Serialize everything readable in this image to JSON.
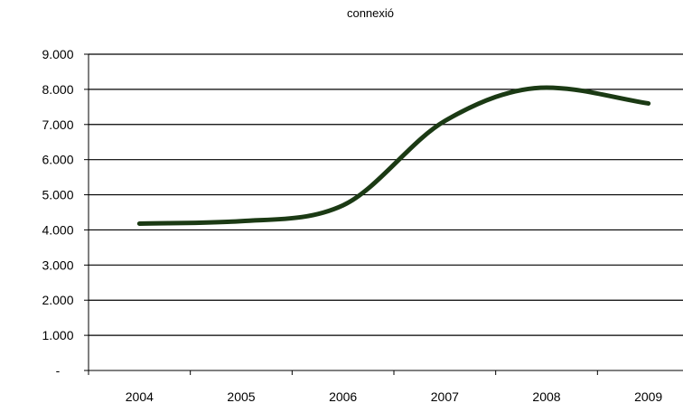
{
  "chart_data": {
    "type": "line",
    "title": "connexió",
    "xlabel": "",
    "ylabel": "",
    "categories": [
      "2004",
      "2005",
      "2006",
      "2007",
      "2008",
      "2009"
    ],
    "series": [
      {
        "values": [
          4180,
          4250,
          4700,
          7100,
          8050,
          7600
        ],
        "color": "#1b3a14"
      }
    ],
    "ylim": [
      0,
      9000
    ],
    "y_ticks": [
      {
        "value": 0,
        "label": "-"
      },
      {
        "value": 1000,
        "label": "1.000"
      },
      {
        "value": 2000,
        "label": "2.000"
      },
      {
        "value": 3000,
        "label": "3.000"
      },
      {
        "value": 4000,
        "label": "4.000"
      },
      {
        "value": 5000,
        "label": "5.000"
      },
      {
        "value": 6000,
        "label": "6.000"
      },
      {
        "value": 7000,
        "label": "7.000"
      },
      {
        "value": 8000,
        "label": "8.000"
      },
      {
        "value": 9000,
        "label": "9.000"
      }
    ],
    "grid": "horizontal",
    "legend": "none",
    "smooth": true
  }
}
